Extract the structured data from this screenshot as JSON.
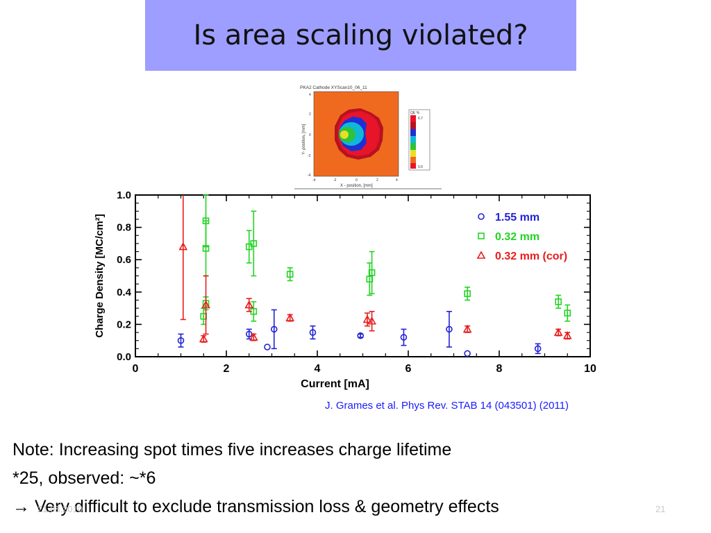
{
  "slide": {
    "title": "Is area scaling violated?",
    "citation": "J. Grames et al. Phys Rev. STAB 14 (043501) (2011)",
    "note_lines": [
      "Note: Increasing spot times five increases charge lifetime",
      "*25, observed: ~*6",
      "→ Very difficult to exclude transmission loss & geometry effects"
    ],
    "footer_date": "21.08.2010",
    "footer_page": "21"
  },
  "heatmap": {
    "title": "PKA2   Cathode   XYScan10_06_11",
    "xlabel": "X - position, [mm]",
    "ylabel": "Y- position, [mm]",
    "ticks": [
      "-4",
      "-2",
      "0",
      "2",
      "4"
    ],
    "legend_header": "QE   %",
    "legend_max": "6.7",
    "legend_min": "0.0",
    "colors": {
      "background": "#ef6a1f",
      "red": "#e8142a",
      "darkred": "#b8121f",
      "blue": "#1f2fd6",
      "cyan": "#10b8d6",
      "green": "#2fc23a",
      "yellow": "#e6e022"
    }
  },
  "chart_data": {
    "type": "scatter",
    "xlabel": "Current [mA]",
    "ylabel": "Charge Density [MC/cm²]",
    "xlim": [
      0,
      10
    ],
    "ylim": [
      0,
      1.0
    ],
    "xticks": [
      0,
      2,
      4,
      6,
      8,
      10
    ],
    "yticks": [
      0.0,
      0.2,
      0.4,
      0.6,
      0.8,
      1.0
    ],
    "legend_position": "top-right",
    "series": [
      {
        "name": "1.55 mm",
        "marker": "circle",
        "color": "#2222d4",
        "points": [
          {
            "x": 1.0,
            "y": 0.1,
            "err": 0.04
          },
          {
            "x": 2.5,
            "y": 0.14,
            "err": 0.03
          },
          {
            "x": 2.9,
            "y": 0.06,
            "err": 0.0
          },
          {
            "x": 3.05,
            "y": 0.17,
            "err": 0.12
          },
          {
            "x": 3.9,
            "y": 0.15,
            "err": 0.04
          },
          {
            "x": 4.95,
            "y": 0.13,
            "err": 0.01
          },
          {
            "x": 5.9,
            "y": 0.12,
            "err": 0.05
          },
          {
            "x": 6.9,
            "y": 0.17,
            "err": 0.11
          },
          {
            "x": 7.3,
            "y": 0.02,
            "err": 0.0
          },
          {
            "x": 8.85,
            "y": 0.05,
            "err": 0.03
          }
        ]
      },
      {
        "name": "0.32 mm",
        "marker": "square",
        "color": "#22d422",
        "points": [
          {
            "x": 1.55,
            "y": 0.84,
            "err": 0.16
          },
          {
            "x": 1.55,
            "y": 0.67,
            "err": 0.17
          },
          {
            "x": 1.5,
            "y": 0.25,
            "err": 0.05
          },
          {
            "x": 1.55,
            "y": 0.33,
            "err": 0.04
          },
          {
            "x": 2.5,
            "y": 0.68,
            "err": 0.1
          },
          {
            "x": 2.6,
            "y": 0.7,
            "err": 0.2
          },
          {
            "x": 2.6,
            "y": 0.28,
            "err": 0.06
          },
          {
            "x": 3.4,
            "y": 0.51,
            "err": 0.04
          },
          {
            "x": 5.15,
            "y": 0.48,
            "err": 0.1
          },
          {
            "x": 5.2,
            "y": 0.52,
            "err": 0.13
          },
          {
            "x": 7.3,
            "y": 0.39,
            "err": 0.04
          },
          {
            "x": 9.3,
            "y": 0.34,
            "err": 0.04
          },
          {
            "x": 9.5,
            "y": 0.27,
            "err": 0.05
          }
        ]
      },
      {
        "name": "0.32 mm (cor)",
        "marker": "triangle",
        "color": "#e81c1c",
        "points": [
          {
            "x": 1.05,
            "y": 0.68,
            "err": 0.45
          },
          {
            "x": 1.55,
            "y": 0.32,
            "err": 0.18
          },
          {
            "x": 1.5,
            "y": 0.11,
            "err": 0.02
          },
          {
            "x": 2.5,
            "y": 0.32,
            "err": 0.04
          },
          {
            "x": 2.6,
            "y": 0.12,
            "err": 0.02
          },
          {
            "x": 3.4,
            "y": 0.24,
            "err": 0.02
          },
          {
            "x": 5.1,
            "y": 0.23,
            "err": 0.04
          },
          {
            "x": 5.2,
            "y": 0.22,
            "err": 0.06
          },
          {
            "x": 7.3,
            "y": 0.17,
            "err": 0.02
          },
          {
            "x": 9.3,
            "y": 0.15,
            "err": 0.02
          },
          {
            "x": 9.5,
            "y": 0.13,
            "err": 0.02
          }
        ]
      }
    ]
  }
}
